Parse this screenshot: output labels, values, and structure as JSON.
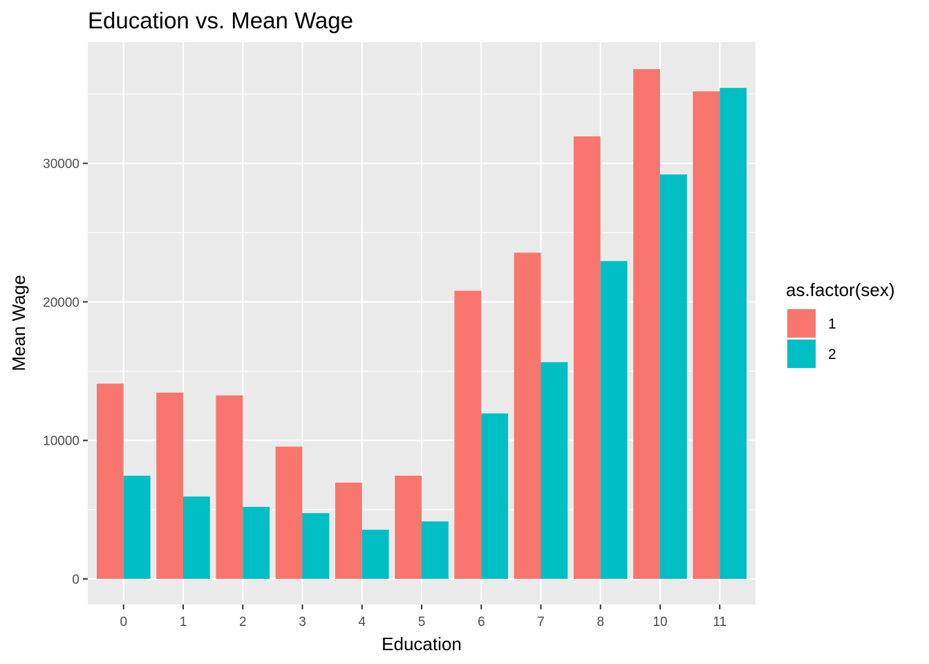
{
  "chart_data": {
    "type": "bar",
    "title": "Education vs. Mean Wage",
    "xlabel": "Education",
    "ylabel": "Mean Wage",
    "categories": [
      "0",
      "1",
      "2",
      "3",
      "4",
      "5",
      "6",
      "7",
      "8",
      "10",
      "11"
    ],
    "series": [
      {
        "name": "1",
        "color": "#F8766D",
        "values": [
          14100,
          13450,
          13250,
          9550,
          6950,
          7450,
          20800,
          23550,
          31950,
          36800,
          35200
        ]
      },
      {
        "name": "2",
        "color": "#00BFC4",
        "values": [
          7450,
          5950,
          5200,
          4750,
          3550,
          4150,
          11950,
          15650,
          22950,
          29200,
          35450
        ]
      }
    ],
    "yticks": [
      0,
      10000,
      20000,
      30000
    ],
    "ylim": [
      -1850,
      38750
    ],
    "grid": true,
    "legend": {
      "title": "as.factor(sex)",
      "position": "right"
    },
    "colors": {
      "panel_background": "#EBEBEB",
      "grid": "#FFFFFF",
      "tick_text": "#4D4D4D"
    }
  }
}
